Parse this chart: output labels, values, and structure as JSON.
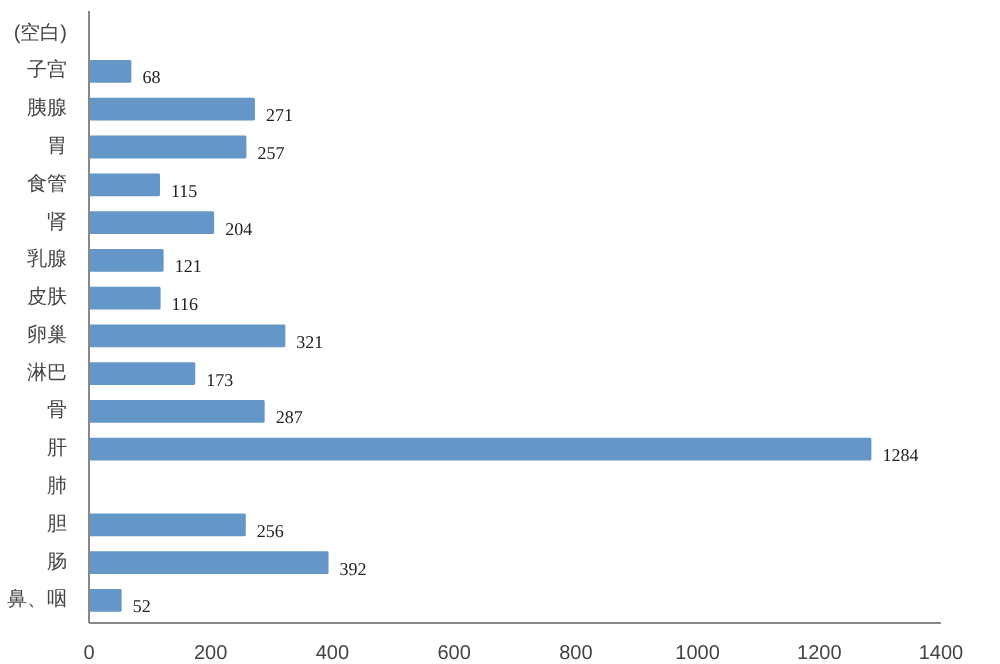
{
  "chart_data": {
    "type": "bar",
    "orientation": "horizontal",
    "categories": [
      "(空白)",
      "子宫",
      "胰腺",
      "胃",
      "食管",
      "肾",
      "乳腺",
      "皮肤",
      "卵巢",
      "淋巴",
      "骨",
      "肝",
      "肺",
      "胆",
      "肠",
      "鼻、咽"
    ],
    "values": [
      null,
      68,
      271,
      257,
      115,
      204,
      121,
      116,
      321,
      173,
      287,
      1284,
      null,
      256,
      392,
      52
    ],
    "color": "#6496c8",
    "data_labels": true,
    "xlim": [
      0,
      1400
    ],
    "xticks": [
      0,
      200,
      400,
      600,
      800,
      1000,
      1200,
      1400
    ],
    "grid": false
  }
}
